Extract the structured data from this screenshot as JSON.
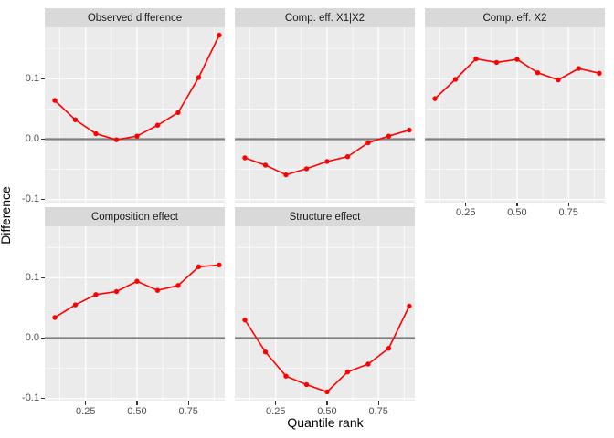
{
  "axes": {
    "x_title": "Quantile rank",
    "y_title": "Difference",
    "x_tick_labels": [
      "0.25",
      "0.50",
      "0.75"
    ],
    "x_tick_values": [
      0.25,
      0.5,
      0.75
    ],
    "x_minor_values": [
      0.125,
      0.375,
      0.625,
      0.875
    ],
    "y_tick_labels": [
      "0.1",
      "0.0",
      "-0.1"
    ],
    "y_tick_values": [
      0.1,
      0,
      -0.1
    ],
    "y_minor_values": [
      0.15,
      0.05,
      -0.05
    ]
  },
  "colors": {
    "figure_background": "#FFFFFF",
    "panel_background": "#EBEBEB",
    "strip_background": "#D9D9D9",
    "grid": "#FFFFFF",
    "zero_line": "#7F7F7F",
    "series": "#FE0000",
    "axis_text": "#4D4D4D",
    "title_text": "#000000",
    "strip_text": "#1A1A1A",
    "tick_mark": "#333333"
  },
  "chart_data": {
    "type": "line",
    "title": "",
    "xlabel": "Quantile rank",
    "ylabel": "Difference",
    "x": [
      0.1,
      0.2,
      0.3,
      0.4,
      0.5,
      0.6,
      0.7,
      0.8,
      0.9
    ],
    "series": [
      {
        "name": "Observed difference",
        "values": [
          0.064,
          0.032,
          0.009,
          -0.001,
          0.005,
          0.023,
          0.044,
          0.102,
          0.172
        ]
      },
      {
        "name": "Comp. eff. X1|X2",
        "values": [
          -0.031,
          -0.043,
          -0.059,
          -0.049,
          -0.037,
          -0.029,
          -0.006,
          0.005,
          0.015
        ]
      },
      {
        "name": "Comp. eff. X2",
        "values": [
          0.067,
          0.099,
          0.133,
          0.127,
          0.132,
          0.11,
          0.098,
          0.117,
          0.109
        ]
      },
      {
        "name": "Composition effect",
        "values": [
          0.034,
          0.055,
          0.072,
          0.077,
          0.094,
          0.079,
          0.087,
          0.118,
          0.121
        ]
      },
      {
        "name": "Structure effect",
        "values": [
          0.03,
          -0.023,
          -0.063,
          -0.077,
          -0.089,
          -0.056,
          -0.043,
          -0.017,
          0.053
        ]
      }
    ],
    "xlim": [
      0.051,
      0.927
    ],
    "ylim": [
      -0.105,
      0.185
    ],
    "reference_line_y": 0,
    "grid": true,
    "legend": false,
    "facet_layout": "2 rows x 3 columns, bottom-right cell empty"
  }
}
